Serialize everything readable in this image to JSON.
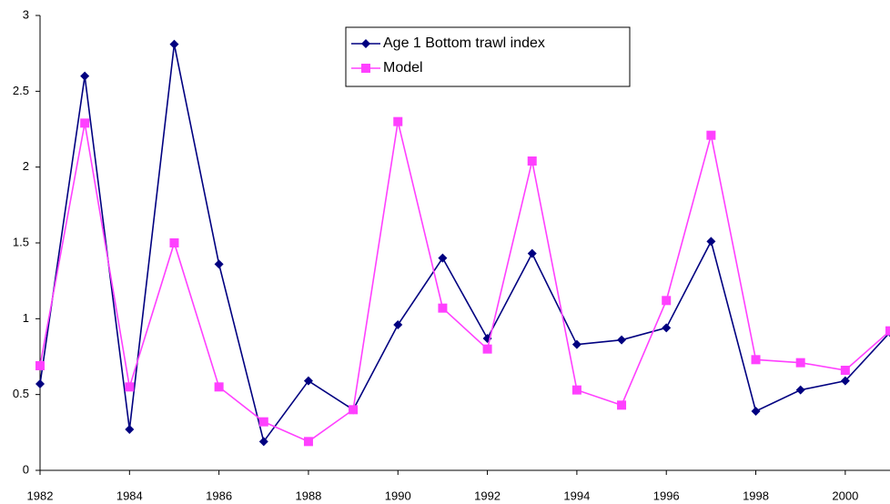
{
  "chart_data": {
    "type": "line",
    "x": [
      1982,
      1983,
      1984,
      1985,
      1986,
      1987,
      1988,
      1989,
      1990,
      1991,
      1992,
      1993,
      1994,
      1995,
      1996,
      1997,
      1998,
      1999,
      2000,
      2001
    ],
    "series": [
      {
        "name": "Age 1 Bottom trawl index",
        "color": "#000080",
        "marker": "diamond",
        "values": [
          0.57,
          2.6,
          0.27,
          2.81,
          1.36,
          0.19,
          0.59,
          0.4,
          0.96,
          1.4,
          0.87,
          1.43,
          0.83,
          0.86,
          0.94,
          1.51,
          0.39,
          0.53,
          0.59,
          0.91
        ]
      },
      {
        "name": "Model",
        "color": "#ff40ff",
        "marker": "square",
        "values": [
          0.69,
          2.29,
          0.55,
          1.5,
          0.55,
          0.32,
          0.19,
          0.4,
          2.3,
          1.07,
          0.8,
          2.04,
          0.53,
          0.43,
          1.12,
          2.21,
          0.73,
          0.71,
          0.66,
          0.92
        ]
      }
    ],
    "xlim": [
      1982,
      2001
    ],
    "xticks": [
      1982,
      1984,
      1986,
      1988,
      1990,
      1992,
      1994,
      1996,
      1998,
      2000
    ],
    "ylim": [
      0,
      3
    ],
    "yticks": [
      0,
      0.5,
      1,
      1.5,
      2,
      2.5,
      3
    ],
    "grid": false,
    "legend": "top-center"
  }
}
